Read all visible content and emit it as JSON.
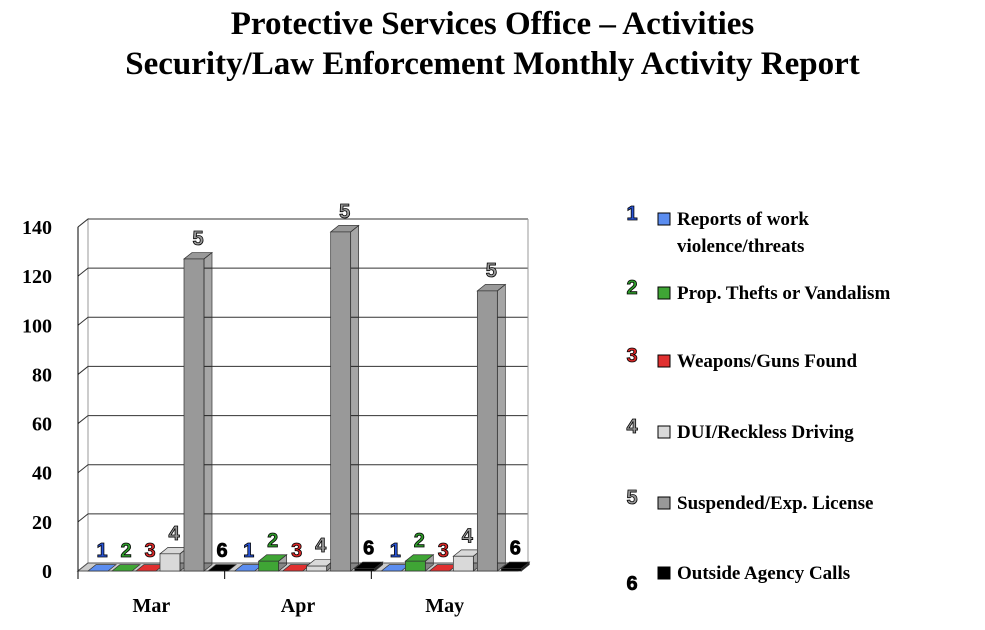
{
  "chart_data": {
    "type": "bar",
    "title": "Protective Services Office – Activities",
    "subtitle": "Security/Law Enforcement Monthly Activity Report",
    "xlabel": "",
    "ylabel": "",
    "ylim": [
      0,
      140
    ],
    "yticks": [
      "0",
      "20",
      "40",
      "60",
      "80",
      "100",
      "120",
      "140"
    ],
    "categories": [
      "Mar",
      "Apr",
      "May"
    ],
    "series": [
      {
        "num": "1",
        "name": "Reports of work violence/threats",
        "name_lines": [
          "Reports of work",
          "violence/threats"
        ],
        "color": "#5b8df0",
        "values": [
          0,
          0,
          0
        ]
      },
      {
        "num": "2",
        "name": "Prop. Thefts or Vandalism",
        "name_lines": [
          "Prop. Thefts or Vandalism"
        ],
        "color": "#3fa535",
        "values": [
          0,
          4,
          4
        ]
      },
      {
        "num": "3",
        "name": "Weapons/Guns Found",
        "name_lines": [
          "Weapons/Guns Found"
        ],
        "color": "#e03030",
        "values": [
          0,
          0,
          0
        ]
      },
      {
        "num": "4",
        "name": "DUI/Reckless Driving",
        "name_lines": [
          "DUI/Reckless Driving"
        ],
        "color": "#d9d9d9",
        "values": [
          7,
          2,
          6
        ]
      },
      {
        "num": "5",
        "name": "Suspended/Exp. License",
        "name_lines": [
          "Suspended/Exp. License"
        ],
        "color": "#999999",
        "values": [
          127,
          138,
          114
        ]
      },
      {
        "num": "6",
        "name": "Outside Agency Calls",
        "name_lines": [
          "Outside Agency Calls"
        ],
        "color": "#000000",
        "values": [
          0,
          1,
          1
        ]
      }
    ],
    "num_colors": [
      "#2a55d8",
      "#2e9a2a",
      "#d82828",
      "#888888",
      "#888888",
      "#000000"
    ],
    "grid": true,
    "legend": "right"
  }
}
